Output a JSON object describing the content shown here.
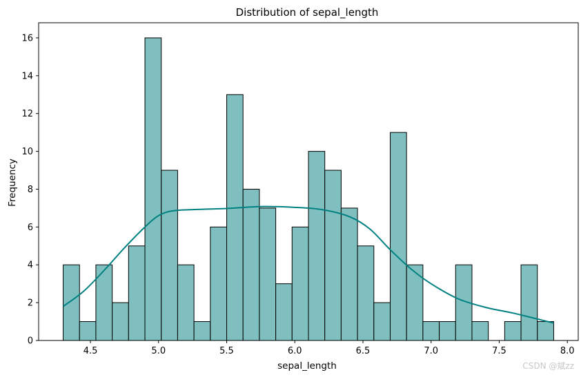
{
  "chart_data": {
    "type": "bar",
    "title": "Distribution of sepal_length",
    "xlabel": "sepal_length",
    "ylabel": "Frequency",
    "xlim": [
      4.12,
      8.08
    ],
    "ylim": [
      0,
      16.8
    ],
    "bin_start": 4.3,
    "bin_width": 0.12,
    "counts": [
      4,
      1,
      4,
      2,
      5,
      16,
      9,
      4,
      1,
      6,
      13,
      8,
      7,
      3,
      6,
      10,
      9,
      7,
      5,
      2,
      11,
      4,
      1,
      1,
      4,
      1,
      0,
      1,
      4,
      1
    ],
    "xticks": [
      4.5,
      5.0,
      5.5,
      6.0,
      6.5,
      7.0,
      7.5,
      8.0
    ],
    "xtick_labels": [
      "4.5",
      "5.0",
      "5.5",
      "6.0",
      "6.5",
      "7.0",
      "7.5",
      "8.0"
    ],
    "yticks": [
      0,
      2,
      4,
      6,
      8,
      10,
      12,
      14,
      16
    ],
    "ytick_labels": [
      "0",
      "2",
      "4",
      "6",
      "8",
      "10",
      "12",
      "14",
      "16"
    ],
    "kde": {
      "x": [
        4.3,
        4.45,
        4.6,
        4.75,
        4.9,
        5.0,
        5.1,
        5.25,
        5.5,
        5.75,
        6.0,
        6.2,
        6.4,
        6.55,
        6.7,
        6.85,
        7.0,
        7.2,
        7.4,
        7.6,
        7.8,
        7.9
      ],
      "y": [
        1.8,
        2.6,
        3.7,
        4.9,
        6.0,
        6.6,
        6.85,
        6.92,
        6.98,
        7.08,
        7.04,
        6.92,
        6.55,
        5.9,
        4.8,
        3.8,
        3.0,
        2.2,
        1.75,
        1.45,
        1.1,
        0.92
      ]
    },
    "colors": {
      "bar_fill": "#7fbfbf",
      "bar_edge": "#000000",
      "kde_line": "#008080"
    },
    "grid": false
  },
  "watermark": "CSDN @斌zz"
}
